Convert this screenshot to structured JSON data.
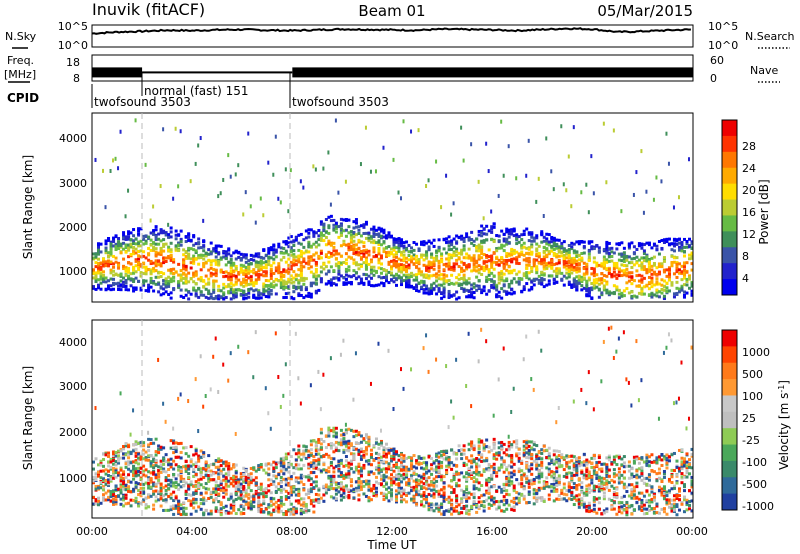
{
  "header": {
    "station": "Inuvik (fitACF)",
    "beam": "Beam 01",
    "date": "05/Mar/2015"
  },
  "side_labels": {
    "nsky": "N.Sky",
    "nsearch": "N.Search",
    "freq": "Freq.",
    "freq_unit": "[MHz]",
    "nave": "Nave",
    "cpid": "CPID"
  },
  "noise_ticks": {
    "top": "10^5",
    "bottom": "10^0"
  },
  "freq_ticks": {
    "left": [
      "18",
      "8"
    ],
    "right": [
      "60",
      "0"
    ]
  },
  "chart_data": [
    {
      "type": "line",
      "name": "noise",
      "x": [
        0,
        1,
        2,
        3,
        4,
        5,
        6,
        7,
        8,
        9,
        10,
        11,
        12,
        13,
        14,
        15,
        16,
        17,
        18,
        19,
        20,
        21,
        22,
        23,
        24
      ],
      "values": [
        3.2,
        3.6,
        3.8,
        4.1,
        4.0,
        4.2,
        4.3,
        4.1,
        4.0,
        4.2,
        4.4,
        4.3,
        4.2,
        4.1,
        4.4,
        4.3,
        4.2,
        4.0,
        4.3,
        4.6,
        4.4,
        3.6,
        3.8,
        4.1,
        4.3
      ]
    },
    {
      "type": "line",
      "name": "frequency",
      "x": [
        0,
        2,
        8,
        24
      ],
      "values": [
        11,
        11,
        11,
        11
      ]
    },
    {
      "type": "table",
      "name": "cpid",
      "segments": [
        {
          "start": 0,
          "end": 2,
          "label": "twofsound 3503"
        },
        {
          "start": 2,
          "end": 8,
          "label": "normal (fast) 151"
        },
        {
          "start": 8,
          "end": 24,
          "label": "twofsound 3503"
        }
      ]
    },
    {
      "type": "heatmap",
      "name": "power",
      "ylabel": "Slant Range [km]",
      "ylim": [
        200,
        4500
      ],
      "yticks": [
        "1000",
        "2000",
        "3000",
        "4000"
      ],
      "colorbar_label": "Power [dB]",
      "colorbar_ticks": [
        "28",
        "24",
        "20",
        "16",
        "12",
        "8",
        "4"
      ]
    },
    {
      "type": "heatmap",
      "name": "velocity",
      "ylabel": "Slant Range [km]",
      "ylim": [
        200,
        4500
      ],
      "yticks": [
        "1000",
        "2000",
        "3000",
        "4000"
      ],
      "xlabel": "Time UT",
      "xticks": [
        "00:00",
        "04:00",
        "08:00",
        "12:00",
        "16:00",
        "20:00",
        "00:00"
      ],
      "colorbar_label": "Velocity [m s-1]",
      "colorbar_ticks": [
        "1000",
        "500",
        "100",
        "25",
        "-25",
        "-100",
        "-500",
        "-1000"
      ]
    }
  ],
  "colors": {
    "power_scale": [
      "#0000ee",
      "#2222cc",
      "#3a54a8",
      "#3f8f5a",
      "#66bb44",
      "#bbcc33",
      "#ffdd00",
      "#ffaa00",
      "#ff7700",
      "#ff3300",
      "#ee0000"
    ],
    "velocity_scale": [
      "#2040a0",
      "#2f6a9a",
      "#3a8a6a",
      "#4aa85a",
      "#8ecb55",
      "#bfbfbf",
      "#c8c8c8",
      "#ff9933",
      "#ff7a1a",
      "#ff4400",
      "#ee0000"
    ]
  }
}
